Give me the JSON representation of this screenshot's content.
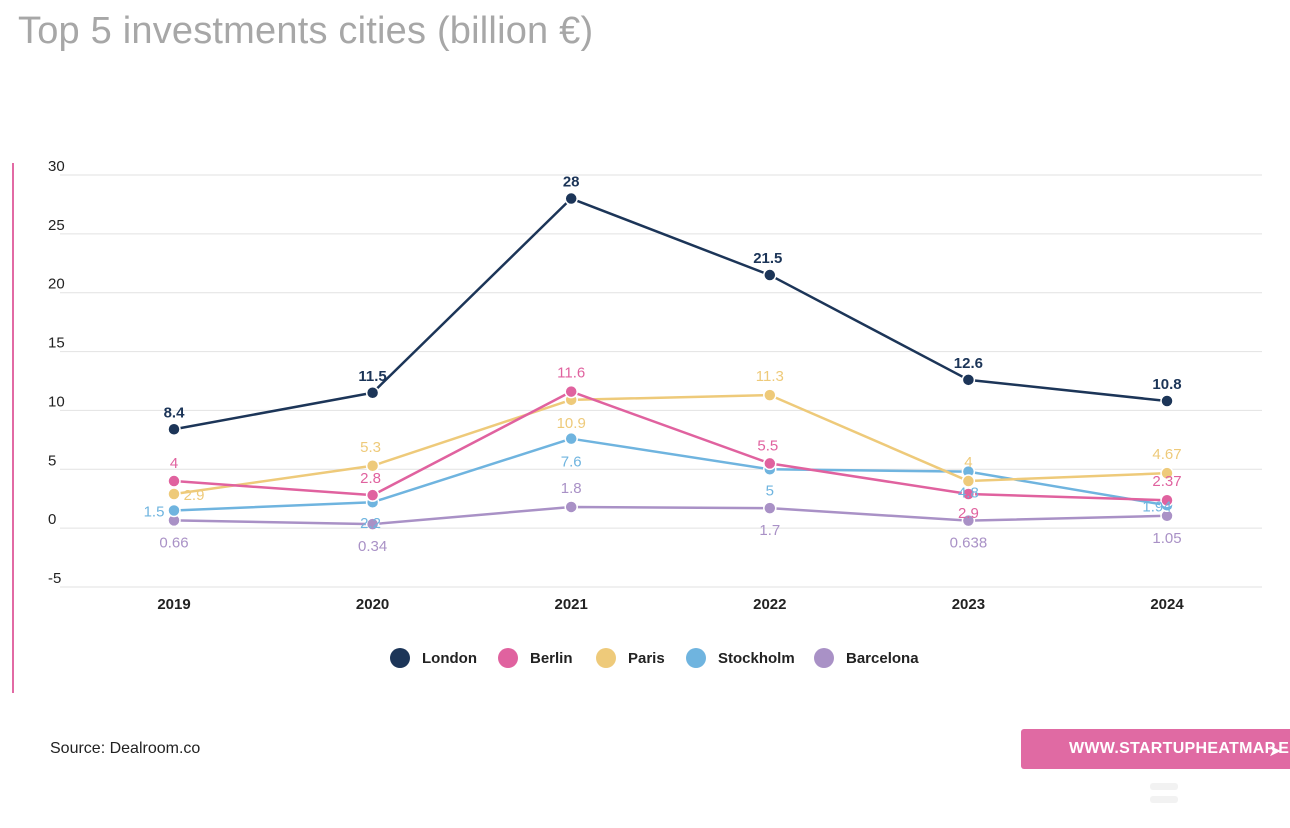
{
  "title": "Top 5 investments cities (billion €)",
  "source": "Source: Dealroom.co",
  "brand": {
    "label": "WWW.STARTUPHEATMAP.EU",
    "icon": "cursor-arrow-icon"
  },
  "colors": {
    "London": "#1c3558",
    "Berlin": "#e0629f",
    "Paris": "#eeca7a",
    "Stockholm": "#6fb4df",
    "Barcelona": "#a991c6",
    "accent_rule": "#e26aa4",
    "brand_bg": "#e06aa3"
  },
  "chart_data": {
    "type": "line",
    "title": "Top 5 investments cities (billion €)",
    "x": [
      "2019",
      "2020",
      "2021",
      "2022",
      "2023",
      "2024"
    ],
    "ylim": [
      -5,
      30
    ],
    "yticks": [
      "30",
      "25",
      "20",
      "15",
      "10",
      "5",
      "0",
      "-5"
    ],
    "ytick_values": [
      30,
      25,
      20,
      15,
      10,
      5,
      0,
      -5
    ],
    "grid": true,
    "legend": "bottom-center",
    "series": [
      {
        "name": "London",
        "values": [
          8.4,
          11.5,
          28,
          21.5,
          12.6,
          10.8
        ],
        "labels": [
          "8.4",
          "11.5",
          "28",
          "21.5",
          "12.6",
          "10.8"
        ]
      },
      {
        "name": "Berlin",
        "values": [
          4,
          2.8,
          11.6,
          5.5,
          2.9,
          2.37
        ],
        "labels": [
          "4",
          "2.8",
          "11.6",
          "5.5",
          "2.9",
          "2.37"
        ]
      },
      {
        "name": "Paris",
        "values": [
          2.9,
          5.3,
          10.9,
          11.3,
          4,
          4.67
        ],
        "labels": [
          "2.9",
          "5.3",
          "10.9",
          "11.3",
          "4",
          "4.67"
        ]
      },
      {
        "name": "Stockholm",
        "values": [
          1.5,
          2.2,
          7.6,
          5,
          4.8,
          1.94
        ],
        "labels": [
          "1.5",
          "2.2",
          "7.6",
          "5",
          "4.8",
          "1.94"
        ]
      },
      {
        "name": "Barcelona",
        "values": [
          0.66,
          0.34,
          1.8,
          1.7,
          0.638,
          1.05
        ],
        "labels": [
          "0.66",
          "0.34",
          "1.8",
          "1.7",
          "0.638",
          "1.05"
        ]
      }
    ]
  }
}
